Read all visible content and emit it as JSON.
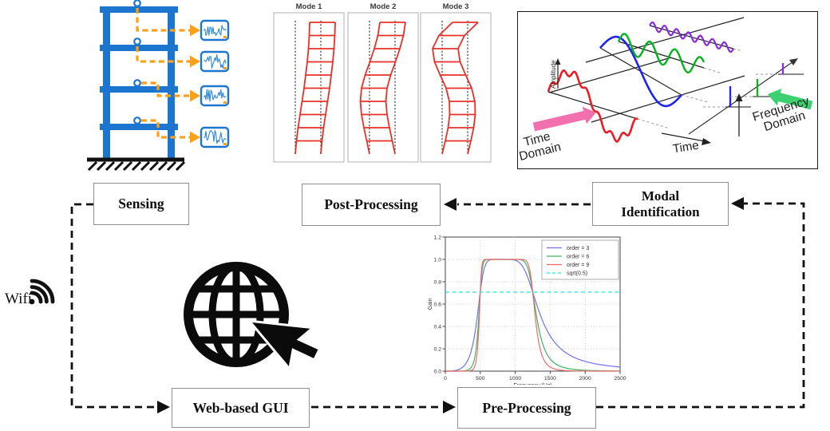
{
  "flow": {
    "wifi_label": "Wifi",
    "boxes": {
      "sensing": "Sensing",
      "post_processing": "Post-Processing",
      "modal_identification": "Modal Identification",
      "web_gui": "Web-based GUI",
      "pre_processing": "Pre-Processing"
    }
  },
  "building": {
    "stories": 4,
    "sensor_count": 4,
    "structure_color": "#1c75ce",
    "sensor_signal_color": "#2a85dc",
    "arrow_color": "#f9a11b"
  },
  "mode_shapes": {
    "frame_color": "#e8302a",
    "modes": [
      {
        "label": "Mode 1",
        "offsets": [
          0,
          1.5,
          3.5,
          6,
          8.5,
          11,
          13,
          15,
          16.5,
          17.5,
          18
        ]
      },
      {
        "label": "Mode 2",
        "offsets": [
          0,
          -3.5,
          -7,
          -10,
          -11.5,
          -10,
          -5.5,
          0.5,
          6,
          10.5,
          13
        ]
      },
      {
        "label": "Mode 3",
        "offsets": [
          0,
          4,
          7.5,
          9.5,
          9,
          5,
          -2.5,
          -9.5,
          -12,
          -4,
          13
        ]
      }
    ]
  },
  "fft_diagram": {
    "amplitude_label": "Amplitude",
    "time_label": "Time",
    "time_domain_label": "Time Domain",
    "frequency_domain_label": "Frequency Domain",
    "composite_color": "#ee1c25",
    "component_colors": [
      "#1f23f0",
      "#00b51a",
      "#8a2be2"
    ],
    "time_domain_arrow_color": "#f170ad",
    "frequency_domain_arrow_color": "#3ecf70"
  },
  "chart_data": {
    "type": "line",
    "title": "",
    "xlabel": "Frequency (Hz)",
    "ylabel": "Gain",
    "xlim": [
      0,
      2500
    ],
    "ylim": [
      0,
      1.2
    ],
    "x_ticks": [
      0,
      500,
      1000,
      1500,
      2000,
      2500
    ],
    "y_ticks": [
      0.0,
      0.2,
      0.4,
      0.6,
      0.8,
      1.0,
      1.2
    ],
    "grid": true,
    "legend_position": "upper right",
    "filter_model": {
      "kind": "butterworth-bandpass",
      "f_low_hz": 500,
      "f_high_hz": 1250
    },
    "series": [
      {
        "name": "order = 3",
        "type": "butterworth",
        "order": 3,
        "color": "#7070ee",
        "style": "solid"
      },
      {
        "name": "order = 6",
        "type": "butterworth",
        "order": 6,
        "color": "#3cb35c",
        "style": "solid"
      },
      {
        "name": "order = 9",
        "type": "butterworth",
        "order": 9,
        "color": "#ee6a6a",
        "style": "solid"
      },
      {
        "name": "sqrt(0.5)",
        "type": "hline",
        "value": 0.7071,
        "color": "#2edfdf",
        "style": "dashed"
      }
    ]
  }
}
